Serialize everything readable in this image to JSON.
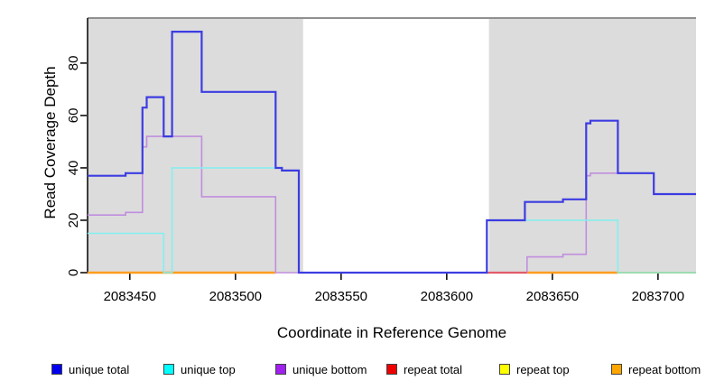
{
  "chart_data": {
    "type": "line",
    "subtype": "step-coverage-plot",
    "title": "",
    "xlabel": "Coordinate in Reference Genome",
    "ylabel": "Read Coverage Depth",
    "xlim": [
      2083430,
      2083718
    ],
    "ylim": [
      0,
      97.2
    ],
    "xticks": [
      2083450,
      2083500,
      2083550,
      2083600,
      2083650,
      2083700
    ],
    "yticks": [
      0,
      20,
      40,
      60,
      80
    ],
    "grid": false,
    "legend_position": "bottom",
    "colors": {
      "shade": "#DCDCDC",
      "box": "#909090",
      "axis": "#000000",
      "background": "#FFFFFF"
    },
    "shaded_regions": [
      {
        "from": 2083430,
        "to": 2083532
      },
      {
        "from": 2083620,
        "to": 2083718
      }
    ],
    "series": [
      {
        "name": "repeat bottom",
        "color": "#FF9D1E",
        "width": 2.6,
        "segments": [
          [
            [
              2083430,
              0
            ],
            [
              2083519,
              0
            ]
          ],
          [
            [
              2083638,
              0
            ],
            [
              2083681,
              0
            ]
          ]
        ]
      },
      {
        "name": "unique bottom",
        "color": "#C08EDE",
        "width": 1.6,
        "segments": [
          [
            [
              2083430,
              22
            ],
            [
              2083448,
              23
            ],
            [
              2083456,
              48
            ],
            [
              2083458,
              52
            ],
            [
              2083484,
              29
            ],
            [
              2083519,
              0
            ],
            [
              2083638,
              6
            ],
            [
              2083655,
              7
            ],
            [
              2083666,
              37
            ],
            [
              2083668,
              38
            ],
            [
              2083698,
              30
            ],
            [
              2083718,
              30
            ]
          ]
        ]
      },
      {
        "name": "repeat total",
        "color": "#E25B6A",
        "width": 2.2,
        "segments": [
          [
            [
              2083619,
              0
            ],
            [
              2083638,
              0
            ]
          ]
        ]
      },
      {
        "name": "unique top",
        "color": "#82EFEF",
        "width": 1.6,
        "segments": [
          [
            [
              2083430,
              15
            ],
            [
              2083466,
              0
            ],
            [
              2083470,
              40
            ],
            [
              2083522,
              39
            ],
            [
              2083530,
              0
            ],
            [
              2083619,
              20
            ],
            [
              2083681,
              0
            ],
            [
              2083718,
              0
            ]
          ]
        ]
      },
      {
        "name": "repeat top",
        "color": "#98D9A8",
        "width": 1.8,
        "segments": [
          [
            [
              2083681,
              0
            ],
            [
              2083718,
              0
            ]
          ]
        ]
      },
      {
        "name": "unique total",
        "color": "#3C3CE2",
        "width": 2.2,
        "segments": [
          [
            [
              2083430,
              37
            ],
            [
              2083448,
              38
            ],
            [
              2083456,
              63
            ],
            [
              2083458,
              67
            ],
            [
              2083466,
              52
            ],
            [
              2083470,
              92
            ],
            [
              2083484,
              69
            ],
            [
              2083519,
              40
            ],
            [
              2083522,
              39
            ],
            [
              2083530,
              0
            ],
            [
              2083619,
              20
            ],
            [
              2083637,
              27
            ],
            [
              2083655,
              28
            ],
            [
              2083666,
              57
            ],
            [
              2083668,
              58
            ],
            [
              2083681,
              38
            ],
            [
              2083698,
              30
            ],
            [
              2083718,
              30
            ]
          ]
        ]
      }
    ],
    "legend": [
      {
        "label": "unique total",
        "color": "#0000EE"
      },
      {
        "label": "unique top",
        "color": "#00FFFF"
      },
      {
        "label": "unique bottom",
        "color": "#A020F0"
      },
      {
        "label": "repeat total",
        "color": "#EE0000"
      },
      {
        "label": "repeat top",
        "color": "#FFFF00"
      },
      {
        "label": "repeat bottom",
        "color": "#FFA500"
      }
    ]
  }
}
